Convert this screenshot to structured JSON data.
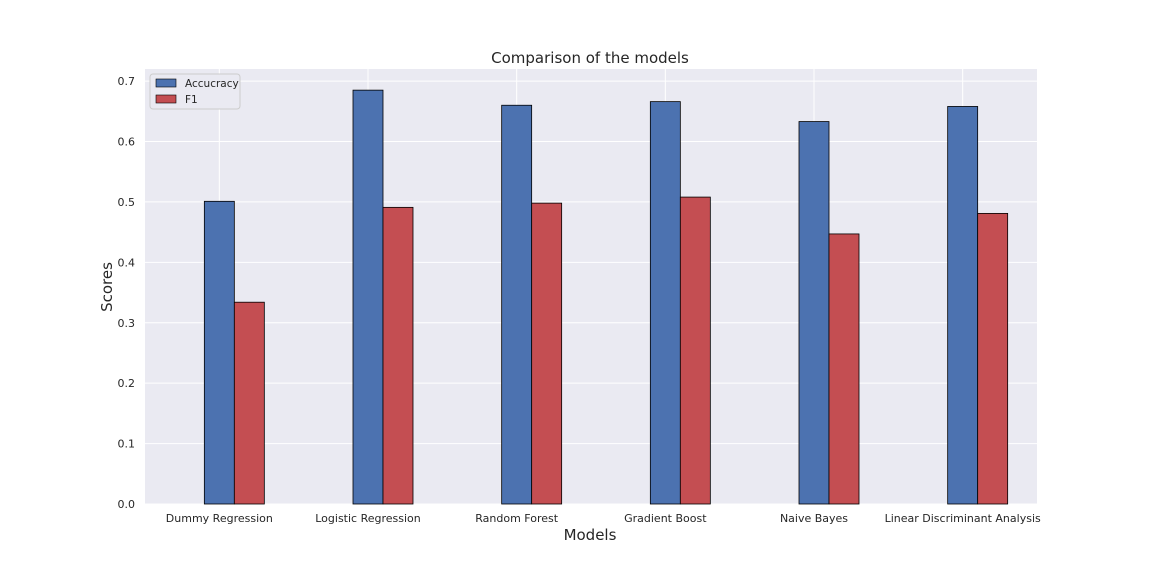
{
  "chart_data": {
    "type": "bar",
    "title": "Comparison of the models",
    "xlabel": "Models",
    "ylabel": "Scores",
    "categories": [
      "Dummy Regression",
      "Logistic Regression",
      "Random Forest",
      "Gradient Boost",
      "Naive Bayes",
      "Linear Discriminant Analysis"
    ],
    "series": [
      {
        "name": "Accucracy",
        "color": "#4c72b0",
        "values": [
          0.501,
          0.685,
          0.66,
          0.666,
          0.633,
          0.658
        ]
      },
      {
        "name": "F1",
        "color": "#c44e52",
        "values": [
          0.334,
          0.491,
          0.498,
          0.508,
          0.447,
          0.481
        ]
      }
    ],
    "ylim": [
      0,
      0.72
    ],
    "yticks": [
      "0.0",
      "0.1",
      "0.2",
      "0.3",
      "0.4",
      "0.5",
      "0.6",
      "0.7"
    ],
    "grid": true,
    "legend": "top-left"
  }
}
